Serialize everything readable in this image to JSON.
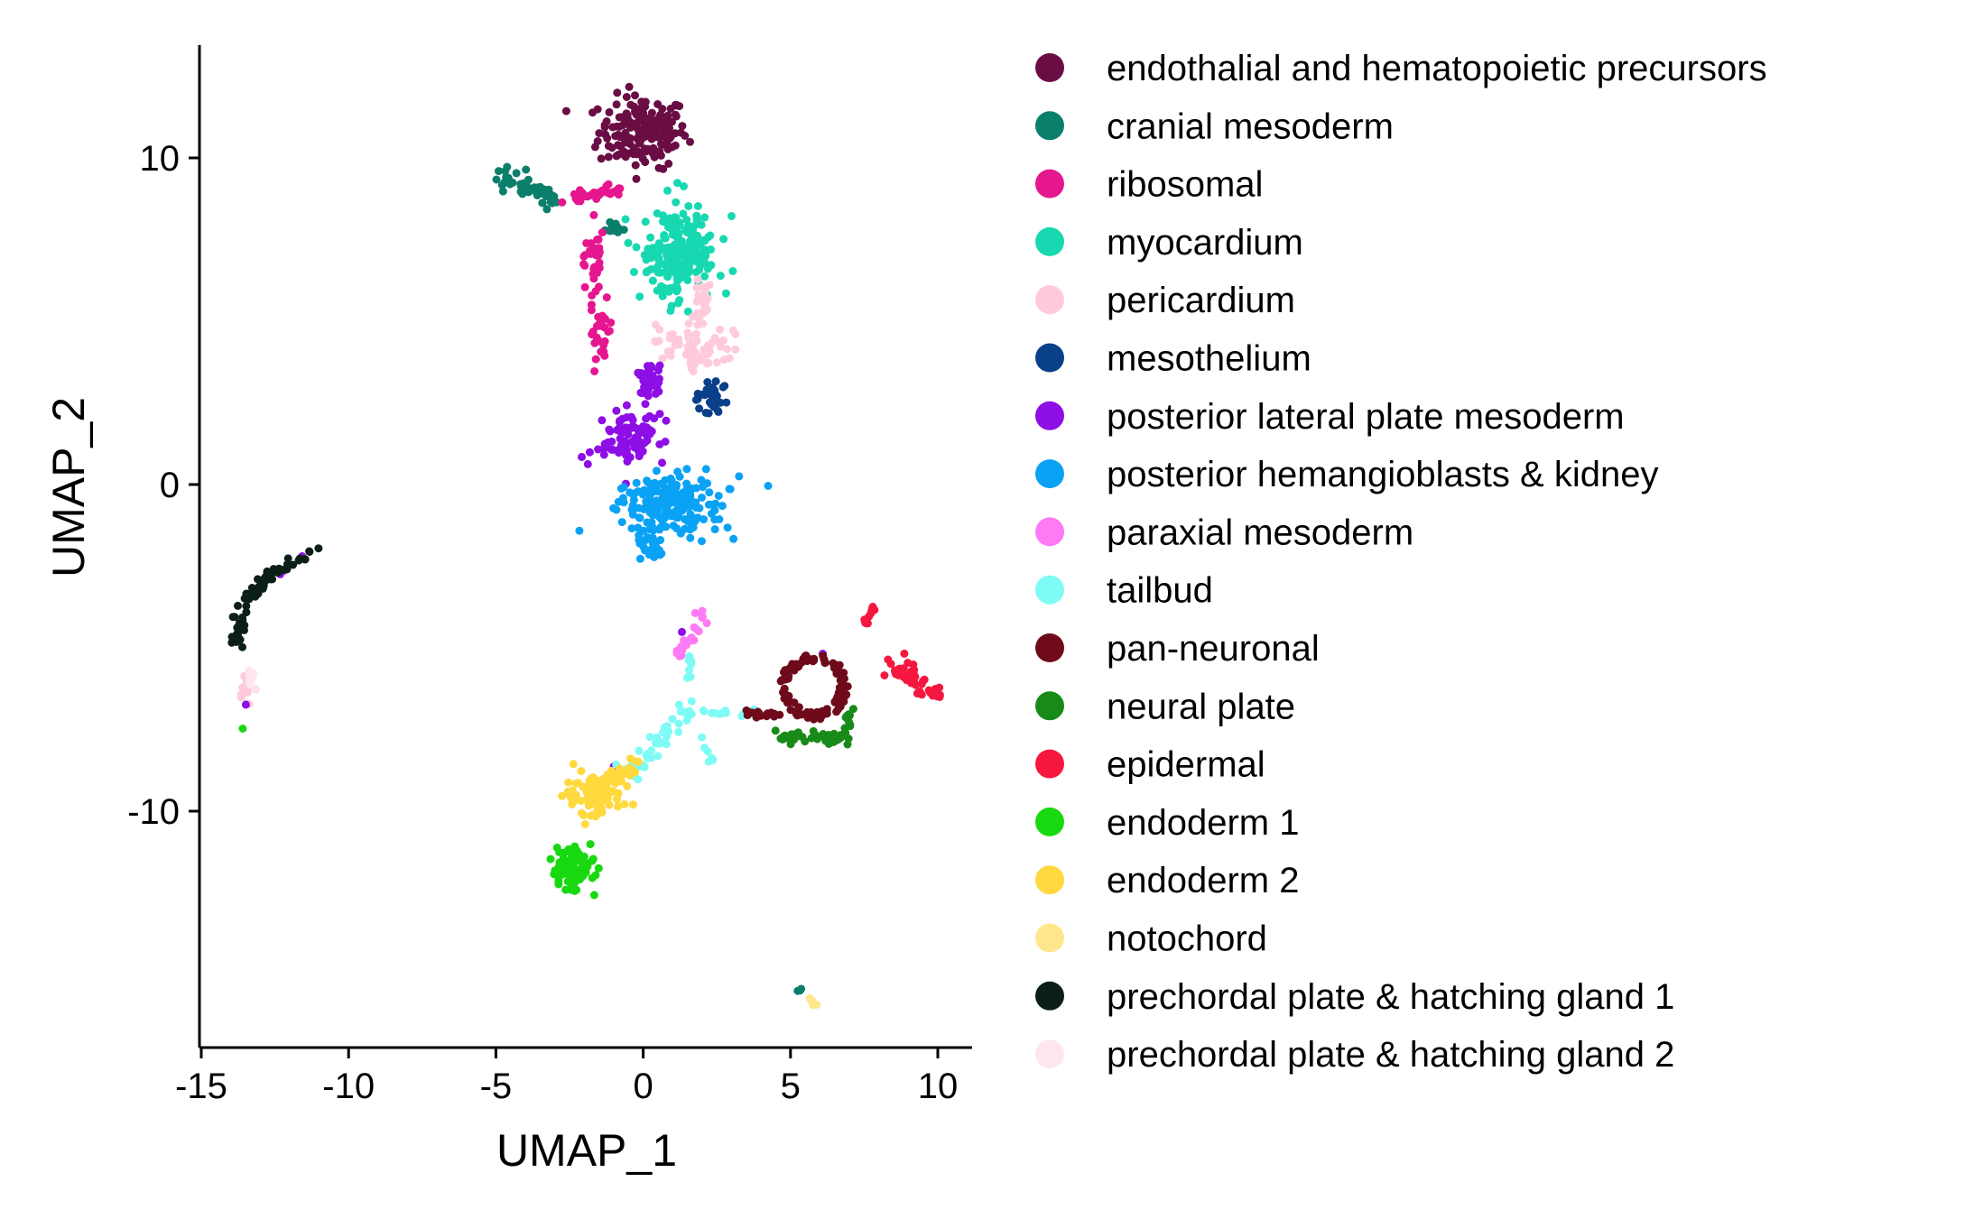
{
  "chart_data": {
    "type": "scatter",
    "title": "",
    "xlabel": "UMAP_1",
    "ylabel": "UMAP_2",
    "xlim": [
      -15,
      11.5
    ],
    "ylim": [
      -17.5,
      13.5
    ],
    "xticks": [
      -15,
      -10,
      -5,
      0,
      5,
      10
    ],
    "yticks": [
      -10,
      0,
      10
    ],
    "xtick_labels": [
      "-15",
      "-10",
      "-5",
      "0",
      "5",
      "10"
    ],
    "ytick_labels": [
      "-10",
      "0",
      "10"
    ],
    "grid": false,
    "legend_position": "right",
    "series": [
      {
        "name": "endothalial and hematopoietic precursors",
        "color": "#6A0D45",
        "clusters": [
          {
            "cx": 0,
            "cy": 10.8,
            "rx": 1.5,
            "ry": 1.1,
            "n": 180,
            "shape": "blob"
          }
        ]
      },
      {
        "name": "cranial mesoderm",
        "color": "#0A7F6B",
        "clusters": [
          {
            "x1": -4.8,
            "y1": 9.4,
            "x2": -3.0,
            "y2": 8.7,
            "w": 0.3,
            "n": 45,
            "shape": "line"
          },
          {
            "x1": -1.3,
            "y1": 7.9,
            "x2": -0.5,
            "y2": 7.7,
            "w": 0.2,
            "n": 12,
            "shape": "line"
          },
          {
            "cx": 5.3,
            "cy": -15.5,
            "rx": 0.1,
            "ry": 0.1,
            "n": 3,
            "shape": "blob"
          }
        ]
      },
      {
        "name": "ribosomal",
        "color": "#E6168F",
        "clusters": [
          {
            "cx": -1.7,
            "cy": 6.8,
            "rx": 0.3,
            "ry": 0.9,
            "n": 35,
            "shape": "blob"
          },
          {
            "cx": -1.5,
            "cy": 4.8,
            "rx": 0.3,
            "ry": 0.8,
            "n": 30,
            "shape": "blob"
          },
          {
            "x1": -2.7,
            "y1": 8.7,
            "x2": -0.9,
            "y2": 9.0,
            "w": 0.25,
            "n": 30,
            "shape": "line"
          }
        ]
      },
      {
        "name": "myocardium",
        "color": "#17D8B0",
        "clusters": [
          {
            "cx": 1.2,
            "cy": 7.0,
            "rx": 1.2,
            "ry": 1.6,
            "n": 200,
            "shape": "blob"
          }
        ]
      },
      {
        "name": "pericardium",
        "color": "#FFCBDB",
        "clusters": [
          {
            "cx": 1.6,
            "cy": 4.2,
            "rx": 1.2,
            "ry": 0.7,
            "n": 70,
            "shape": "blob"
          },
          {
            "cx": 2.0,
            "cy": 5.7,
            "rx": 0.3,
            "ry": 0.9,
            "n": 25,
            "shape": "blob"
          },
          {
            "cx": -13.5,
            "cy": -6.2,
            "rx": 0.25,
            "ry": 0.5,
            "n": 14,
            "shape": "blob"
          }
        ]
      },
      {
        "name": "mesothelium",
        "color": "#0A3F8A",
        "clusters": [
          {
            "cx": 2.3,
            "cy": 2.6,
            "rx": 0.5,
            "ry": 0.6,
            "n": 30,
            "shape": "blob"
          }
        ]
      },
      {
        "name": "posterior lateral plate mesoderm",
        "color": "#8E0EE6",
        "clusters": [
          {
            "cx": -0.4,
            "cy": 1.4,
            "rx": 1.0,
            "ry": 1.0,
            "n": 90,
            "shape": "blob"
          },
          {
            "cx": 0.2,
            "cy": 3.3,
            "rx": 0.4,
            "ry": 0.8,
            "n": 35,
            "shape": "blob"
          },
          {
            "x1": -13.1,
            "y1": -3.0,
            "x2": -11.5,
            "y2": -2.2,
            "w": 0.15,
            "n": 4,
            "shape": "line"
          },
          {
            "cx": -13.5,
            "cy": -6.7,
            "rx": 0.05,
            "ry": 0.05,
            "n": 1,
            "shape": "blob"
          },
          {
            "cx": -1.0,
            "cy": -8.6,
            "rx": 0.05,
            "ry": 0.05,
            "n": 1,
            "shape": "blob"
          },
          {
            "cx": 1.3,
            "cy": -4.5,
            "rx": 0.05,
            "ry": 0.05,
            "n": 1,
            "shape": "blob"
          },
          {
            "cx": 6.1,
            "cy": -5.2,
            "rx": 0.05,
            "ry": 0.05,
            "n": 1,
            "shape": "blob"
          }
        ]
      },
      {
        "name": "posterior hemangioblasts & kidney",
        "color": "#0AA2F5",
        "clusters": [
          {
            "cx": 0.9,
            "cy": -0.6,
            "rx": 1.9,
            "ry": 0.9,
            "n": 190,
            "shape": "blob"
          },
          {
            "cx": 0.3,
            "cy": -2.0,
            "rx": 0.4,
            "ry": 0.7,
            "n": 25,
            "shape": "blob"
          }
        ]
      },
      {
        "name": "paraxial mesoderm",
        "color": "#FF7AF5",
        "clusters": [
          {
            "x1": 1.2,
            "y1": -5.3,
            "x2": 2.1,
            "y2": -4.0,
            "w": 0.2,
            "n": 22,
            "shape": "line"
          }
        ]
      },
      {
        "name": "tailbud",
        "color": "#7FFBF5",
        "clusters": [
          {
            "x1": -0.4,
            "y1": -8.8,
            "x2": 1.6,
            "y2": -6.8,
            "w": 0.35,
            "n": 40,
            "shape": "line"
          },
          {
            "x1": 1.4,
            "y1": -7.0,
            "x2": 3.8,
            "y2": -7.0,
            "w": 0.15,
            "n": 18,
            "shape": "line"
          },
          {
            "x1": 1.5,
            "y1": -6.3,
            "x2": 1.6,
            "y2": -5.2,
            "w": 0.12,
            "n": 8,
            "shape": "line"
          },
          {
            "x1": 2.0,
            "y1": -7.8,
            "x2": 2.3,
            "y2": -8.5,
            "w": 0.1,
            "n": 8,
            "shape": "line"
          }
        ]
      },
      {
        "name": "pan-neuronal",
        "color": "#6E0A1A",
        "clusters": [
          {
            "cx": 5.8,
            "cy": -6.2,
            "rx": 1.0,
            "ry": 0.9,
            "n": 110,
            "shape": "ring"
          },
          {
            "x1": 3.5,
            "y1": -7.0,
            "x2": 4.7,
            "y2": -7.1,
            "w": 0.15,
            "n": 16,
            "shape": "line"
          }
        ]
      },
      {
        "name": "neural plate",
        "color": "#188A18",
        "clusters": [
          {
            "x1": 4.5,
            "y1": -7.7,
            "x2": 7.0,
            "y2": -7.7,
            "w": 0.2,
            "n": 45,
            "shape": "line"
          },
          {
            "x1": 7.0,
            "y1": -7.5,
            "x2": 7.0,
            "y2": -6.8,
            "w": 0.12,
            "n": 8,
            "shape": "line"
          }
        ]
      },
      {
        "name": "epidermal",
        "color": "#F5173F",
        "clusters": [
          {
            "x1": 8.5,
            "y1": -5.6,
            "x2": 10.0,
            "y2": -6.4,
            "w": 0.3,
            "n": 55,
            "shape": "line"
          },
          {
            "x1": 7.5,
            "y1": -4.3,
            "x2": 7.8,
            "y2": -3.8,
            "w": 0.1,
            "n": 10,
            "shape": "line"
          }
        ]
      },
      {
        "name": "endoderm 1",
        "color": "#18D910",
        "clusters": [
          {
            "cx": -2.4,
            "cy": -11.8,
            "rx": 0.8,
            "ry": 0.7,
            "n": 90,
            "shape": "blob"
          },
          {
            "cx": -13.6,
            "cy": -7.5,
            "rx": 0.05,
            "ry": 0.05,
            "n": 1,
            "shape": "blob"
          }
        ]
      },
      {
        "name": "endoderm 2",
        "color": "#FFD93D",
        "clusters": [
          {
            "cx": -1.7,
            "cy": -9.5,
            "rx": 1.0,
            "ry": 0.6,
            "n": 100,
            "shape": "blob"
          },
          {
            "x1": -1.2,
            "y1": -9.0,
            "x2": -0.2,
            "y2": -8.5,
            "w": 0.25,
            "n": 22,
            "shape": "line"
          }
        ]
      },
      {
        "name": "notochord",
        "color": "#FFE68A",
        "clusters": [
          {
            "x1": 5.5,
            "y1": -15.6,
            "x2": 5.9,
            "y2": -16.0,
            "w": 0.05,
            "n": 6,
            "shape": "line"
          }
        ]
      },
      {
        "name": "prechordal plate & hatching gland 1",
        "color": "#0C1F17",
        "clusters": [
          {
            "x1": -13.8,
            "y1": -4.8,
            "x2": -13.5,
            "y2": -3.5,
            "w": 0.2,
            "n": 30,
            "shape": "line"
          },
          {
            "x1": -13.5,
            "y1": -3.5,
            "x2": -12.5,
            "y2": -2.7,
            "w": 0.2,
            "n": 35,
            "shape": "line"
          },
          {
            "x1": -12.5,
            "y1": -2.7,
            "x2": -11.1,
            "y2": -2.0,
            "w": 0.12,
            "n": 18,
            "shape": "line"
          }
        ]
      },
      {
        "name": "prechordal plate & hatching gland 2",
        "color": "#FFE6EE",
        "clusters": [
          {
            "cx": -13.3,
            "cy": -5.9,
            "rx": 0.2,
            "ry": 0.4,
            "n": 10,
            "shape": "blob"
          }
        ]
      }
    ]
  }
}
